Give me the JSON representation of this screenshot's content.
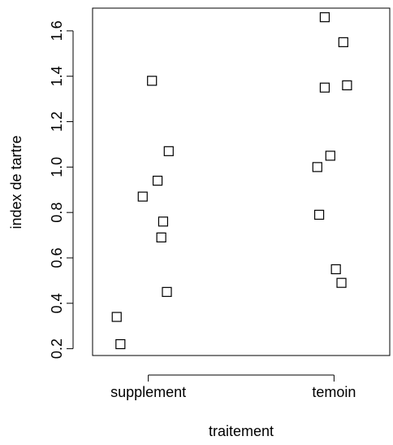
{
  "chart_data": {
    "type": "scatter",
    "title": "",
    "xlabel": "traitement",
    "ylabel": "index de tartre",
    "categories": [
      "supplement",
      "temoin"
    ],
    "ylim": [
      0.17,
      1.7
    ],
    "yticks": [
      0.2,
      0.4,
      0.6,
      0.8,
      1.0,
      1.2,
      1.4,
      1.6
    ],
    "ytick_labels": [
      "0.2",
      "0.4",
      "0.6",
      "0.8",
      "1.0",
      "1.2",
      "1.4",
      "1.6"
    ],
    "marker": "open-square",
    "grid": false,
    "series": [
      {
        "category": "supplement",
        "points": [
          {
            "x": 1.02,
            "y": 1.38
          },
          {
            "x": 1.11,
            "y": 1.07
          },
          {
            "x": 1.05,
            "y": 0.94
          },
          {
            "x": 0.97,
            "y": 0.87
          },
          {
            "x": 1.08,
            "y": 0.76
          },
          {
            "x": 1.07,
            "y": 0.69
          },
          {
            "x": 1.1,
            "y": 0.45
          },
          {
            "x": 0.83,
            "y": 0.34
          },
          {
            "x": 0.85,
            "y": 0.22
          }
        ]
      },
      {
        "category": "temoin",
        "points": [
          {
            "x": 1.95,
            "y": 1.66
          },
          {
            "x": 2.05,
            "y": 1.55
          },
          {
            "x": 1.95,
            "y": 1.35
          },
          {
            "x": 2.07,
            "y": 1.36
          },
          {
            "x": 1.98,
            "y": 1.05
          },
          {
            "x": 1.91,
            "y": 1.0
          },
          {
            "x": 1.92,
            "y": 0.79
          },
          {
            "x": 2.01,
            "y": 0.55
          },
          {
            "x": 2.04,
            "y": 0.49
          }
        ]
      }
    ]
  }
}
